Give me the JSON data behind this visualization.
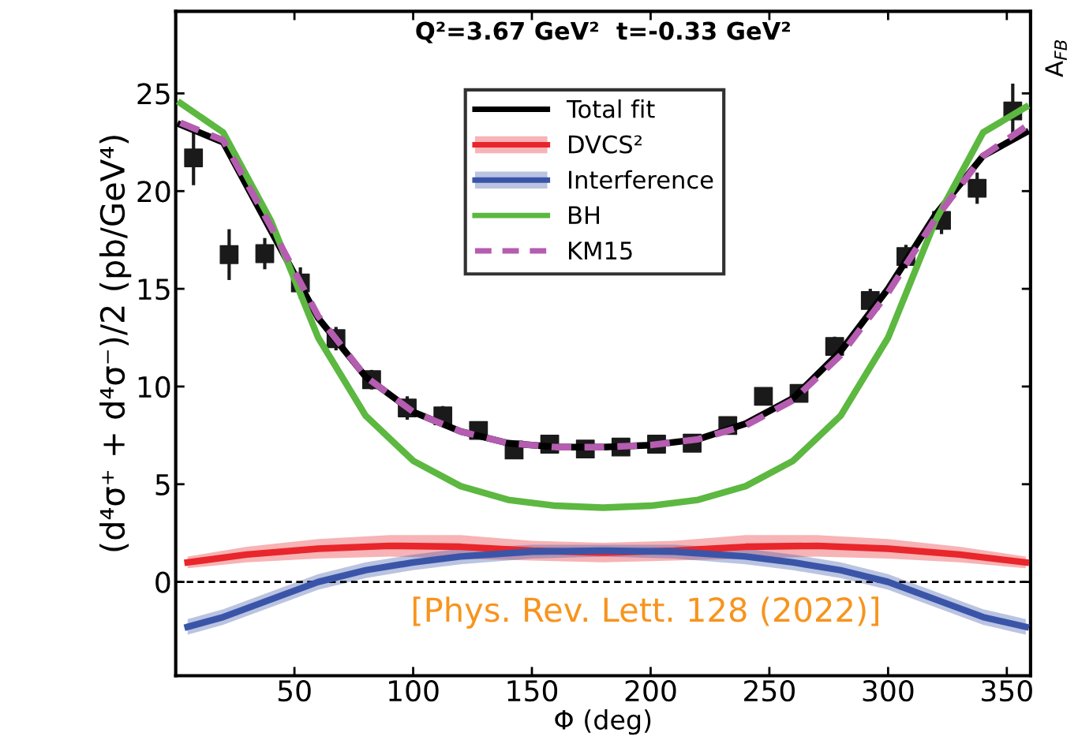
{
  "chart_data": {
    "type": "line",
    "title": "Q²=3.67 GeV²  t=-0.33 GeV²",
    "xlabel": "Φ (deg)",
    "ylabel": "(d⁴σ⁺ + d⁴σ⁻)/2 (pb/GeV⁴)",
    "y2label": "A$_{FB}$",
    "annotations": [
      "[Phys. Rev. Lett. 128 (2022)]"
    ],
    "xlim": [
      0,
      360
    ],
    "ylim": [
      -4.8,
      29.2
    ],
    "xticks": [
      50,
      100,
      150,
      200,
      250,
      300,
      350
    ],
    "yticks": [
      0,
      5,
      10,
      15,
      20,
      25
    ],
    "grid": false,
    "legend": "top",
    "ref_lines": [
      {
        "axis": "y",
        "value": 0,
        "color": "#000000",
        "line_style": "dashed"
      }
    ],
    "series": [
      {
        "name": "Total fit",
        "color": "#000000",
        "line_style": "solid",
        "x": [
          2,
          20,
          40,
          60,
          80,
          100,
          120,
          140,
          160,
          180,
          200,
          220,
          240,
          260,
          280,
          300,
          320,
          340,
          358
        ],
        "values": [
          23.4,
          22.5,
          18.0,
          13.5,
          10.5,
          8.7,
          7.7,
          7.1,
          6.9,
          6.9,
          7.0,
          7.3,
          8.1,
          9.4,
          11.8,
          15.0,
          18.8,
          21.8,
          23.0
        ]
      },
      {
        "name": "DVCS²",
        "color": "#e8262b",
        "line_style": "solid",
        "x": [
          5,
          30,
          60,
          90,
          120,
          150,
          180,
          210,
          240,
          270,
          300,
          330,
          358
        ],
        "values": [
          1.0,
          1.4,
          1.7,
          1.85,
          1.8,
          1.6,
          1.5,
          1.6,
          1.8,
          1.85,
          1.7,
          1.4,
          1.0
        ],
        "lower": [
          0.7,
          1.0,
          1.2,
          1.3,
          1.2,
          1.1,
          1.0,
          1.1,
          1.2,
          1.3,
          1.2,
          1.0,
          0.7
        ],
        "upper": [
          1.3,
          1.8,
          2.2,
          2.4,
          2.4,
          2.1,
          2.0,
          2.1,
          2.4,
          2.4,
          2.2,
          1.8,
          1.3
        ]
      },
      {
        "name": "Interference",
        "color": "#3a55a8",
        "line_style": "solid",
        "x": [
          5,
          20,
          40,
          60,
          80,
          100,
          120,
          150,
          180,
          210,
          240,
          260,
          280,
          300,
          320,
          340,
          358
        ],
        "values": [
          -2.3,
          -1.8,
          -0.9,
          0.0,
          0.6,
          1.0,
          1.3,
          1.55,
          1.6,
          1.55,
          1.3,
          1.0,
          0.6,
          0.0,
          -0.9,
          -1.8,
          -2.3
        ],
        "lower": [
          -2.7,
          -2.2,
          -1.3,
          -0.4,
          0.2,
          0.6,
          0.9,
          1.2,
          1.3,
          1.2,
          0.9,
          0.6,
          0.2,
          -0.4,
          -1.3,
          -2.2,
          -2.7
        ],
        "upper": [
          -1.9,
          -1.4,
          -0.5,
          0.4,
          1.0,
          1.4,
          1.7,
          1.9,
          1.9,
          1.9,
          1.7,
          1.4,
          1.0,
          0.4,
          -0.5,
          -1.4,
          -1.9
        ]
      },
      {
        "name": "BH",
        "color": "#5cb840",
        "line_style": "solid",
        "x": [
          2,
          20,
          40,
          60,
          80,
          100,
          120,
          140,
          160,
          180,
          200,
          220,
          240,
          260,
          280,
          300,
          320,
          340,
          358
        ],
        "values": [
          24.5,
          23.0,
          18.5,
          12.5,
          8.5,
          6.2,
          4.9,
          4.2,
          3.9,
          3.8,
          3.9,
          4.2,
          4.9,
          6.2,
          8.5,
          12.5,
          18.5,
          23.0,
          24.3
        ]
      },
      {
        "name": "KM15",
        "color": "#b55db0",
        "line_style": "dashed",
        "x": [
          2,
          20,
          40,
          60,
          80,
          100,
          120,
          140,
          160,
          180,
          200,
          220,
          240,
          260,
          280,
          300,
          320,
          340,
          358
        ],
        "values": [
          23.5,
          22.6,
          18.2,
          13.6,
          10.5,
          8.7,
          7.7,
          7.1,
          6.9,
          6.9,
          7.0,
          7.3,
          8.0,
          9.3,
          11.6,
          14.8,
          18.6,
          21.8,
          23.3
        ]
      },
      {
        "type": "scatter",
        "color": "#1a1a1a",
        "marker": "square",
        "x": [
          7.5,
          22.5,
          37.5,
          52.5,
          67.5,
          82.5,
          97.5,
          112.5,
          127.5,
          142.5,
          157.5,
          172.5,
          187.5,
          202.5,
          217.5,
          232.5,
          247.5,
          262.5,
          277.5,
          292.5,
          307.5,
          322.5,
          337.5,
          352.5
        ],
        "values": [
          21.7,
          16.75,
          16.8,
          15.3,
          12.45,
          10.35,
          8.9,
          8.5,
          7.75,
          6.75,
          7.05,
          6.8,
          6.9,
          7.05,
          7.1,
          8.0,
          9.5,
          9.65,
          12.05,
          14.4,
          16.65,
          18.5,
          20.15,
          24.1
        ],
        "errors": [
          1.4,
          1.3,
          0.8,
          0.8,
          0.6,
          0.5,
          0.6,
          0.5,
          0.4,
          0.4,
          0.4,
          0.4,
          0.4,
          0.4,
          0.4,
          0.4,
          0.4,
          0.4,
          0.5,
          0.6,
          0.6,
          0.7,
          0.8,
          1.4
        ]
      }
    ]
  }
}
